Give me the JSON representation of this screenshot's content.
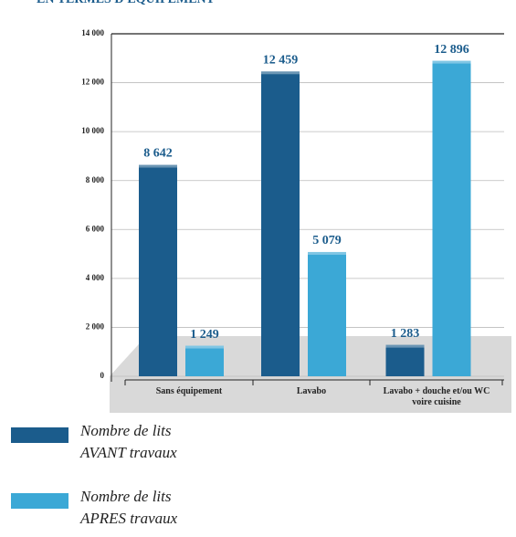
{
  "chart_data": {
    "type": "bar",
    "title": "EN TERMES D'ÉQUIPEMENT",
    "categories": [
      "Sans équipement",
      "Lavabo",
      "Lavabo + douche et/ou WC voire cuisine"
    ],
    "series": [
      {
        "name": "Nombre de lits AVANT travaux",
        "color": "#1b5c8c",
        "values": [
          8642,
          12459,
          1283
        ],
        "value_labels": [
          "8 642",
          "12 459",
          "1 283"
        ]
      },
      {
        "name": "Nombre de lits APRES travaux",
        "color": "#3ba8d6",
        "values": [
          1249,
          5079,
          12896
        ],
        "value_labels": [
          "1 249",
          "5 079",
          "12 896"
        ]
      }
    ],
    "ylim": [
      0,
      14000
    ],
    "yticks": [
      0,
      {
        "value": 2000,
        "label": "2 000"
      },
      {
        "value": 4000,
        "label": "4 000"
      },
      {
        "value": 6000,
        "label": "6 000"
      },
      {
        "value": 8000,
        "label": "8 000"
      },
      {
        "value": 10000,
        "label": "10 000"
      },
      {
        "value": 12000,
        "label": "12 000"
      },
      {
        "value": 14000,
        "label": "14 000"
      }
    ],
    "grid": true
  }
}
